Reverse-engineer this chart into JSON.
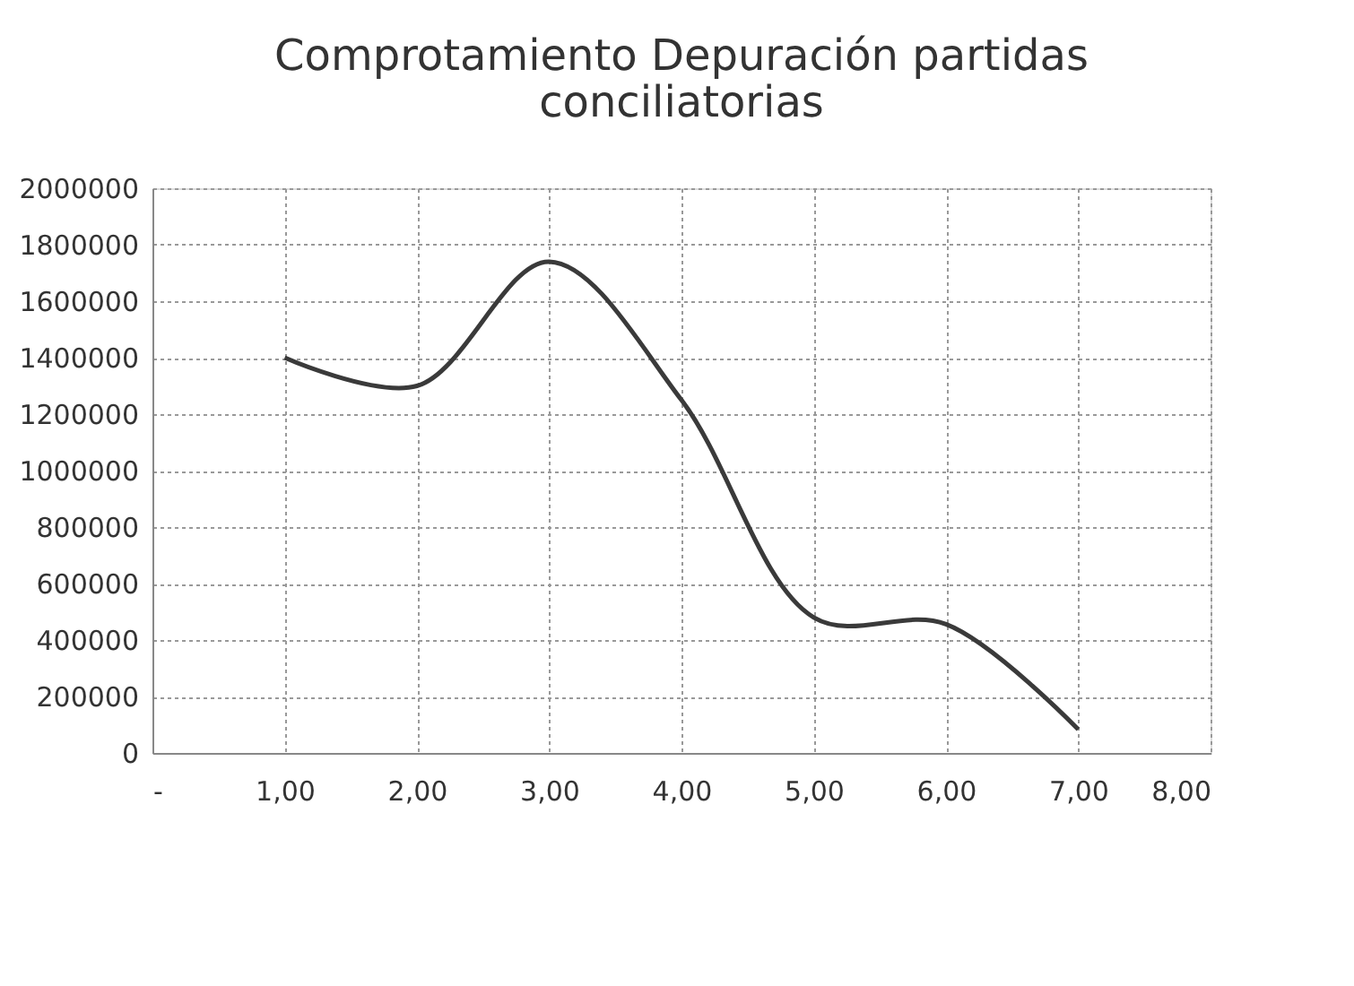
{
  "chart_data": {
    "type": "line",
    "title": [
      "Comprotamiento Depuración partidas",
      "conciliatorias"
    ],
    "x": [
      1,
      2,
      3,
      4,
      5,
      6,
      7
    ],
    "series": [
      {
        "color": "#3a3a3a",
        "values": [
          1400000,
          1300000,
          1740000,
          1250000,
          480000,
          456000,
          83000
        ]
      }
    ],
    "xlim": [
      0,
      8
    ],
    "xticks": [
      {
        "value": 0,
        "label": "-"
      },
      {
        "value": 1,
        "label": "1,00"
      },
      {
        "value": 2,
        "label": "2,00"
      },
      {
        "value": 3,
        "label": "3,00"
      },
      {
        "value": 4,
        "label": "4,00"
      },
      {
        "value": 5,
        "label": "5,00"
      },
      {
        "value": 6,
        "label": "6,00"
      },
      {
        "value": 7,
        "label": "7,00"
      },
      {
        "value": 8,
        "label": "8,00"
      }
    ],
    "ylim": [
      0,
      2000000
    ],
    "yticks": [
      0,
      200000,
      400000,
      600000,
      800000,
      1000000,
      1200000,
      1400000,
      1600000,
      1800000,
      2000000
    ],
    "grid": true,
    "marker": "none",
    "line_style": "solid"
  }
}
